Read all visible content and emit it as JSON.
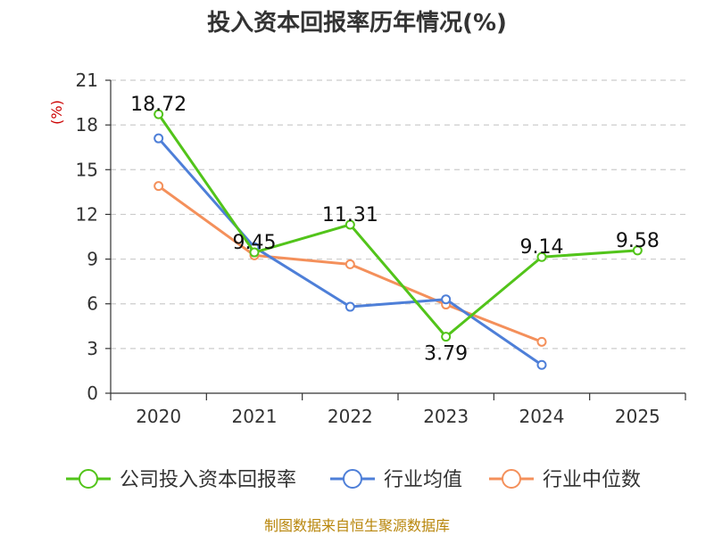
{
  "chart_data": {
    "type": "line",
    "title": "投入资本回报率历年情况(%)",
    "ylabel": "(%)",
    "xlabel": "",
    "categories": [
      "2020",
      "2021",
      "2022",
      "2023",
      "2024",
      "2025"
    ],
    "ylim": [
      0,
      21
    ],
    "yticks": [
      0,
      3,
      6,
      9,
      12,
      15,
      18,
      21
    ],
    "grid": true,
    "legend_position": "bottom",
    "series": [
      {
        "name": "公司投入资本回报率",
        "color": "#52c41a",
        "values": [
          18.72,
          9.45,
          11.31,
          3.79,
          9.14,
          9.58
        ],
        "labels": [
          "18.72",
          "9.45",
          "11.31",
          "3.79",
          "9.14",
          "9.58"
        ]
      },
      {
        "name": "行业均值",
        "color": "#4e7fd8",
        "values": [
          17.1,
          9.8,
          5.8,
          6.3,
          1.9,
          null
        ]
      },
      {
        "name": "行业中位数",
        "color": "#f4905b",
        "values": [
          13.9,
          9.25,
          8.65,
          5.95,
          3.45,
          null
        ]
      }
    ],
    "source": "制图数据来自恒生聚源数据库"
  }
}
